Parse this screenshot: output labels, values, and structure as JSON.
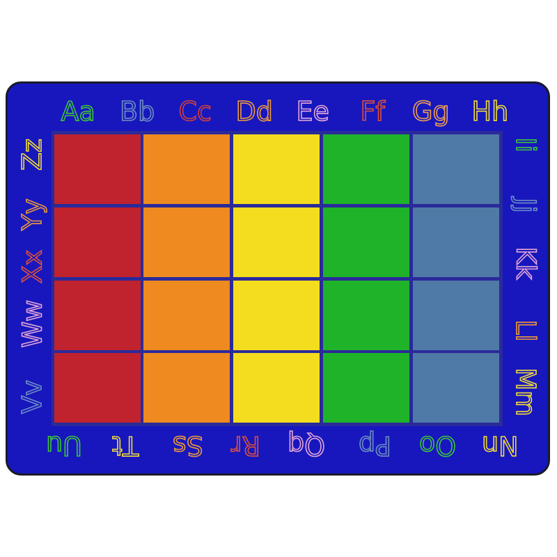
{
  "colors": {
    "rug_background": "#1717bd",
    "grid_lines": "#2a2a9a",
    "columns": [
      "#c0222e",
      "#ee8a1f",
      "#f3dd1e",
      "#1fb32a",
      "#4f79a6"
    ]
  },
  "grid": {
    "columns": 5,
    "rows": 4
  },
  "letters": {
    "top": [
      {
        "text": "Aa",
        "color": "#3ec43a"
      },
      {
        "text": "Bb",
        "color": "#6f8fc4"
      },
      {
        "text": "Cc",
        "color": "#d2403c"
      },
      {
        "text": "Dd",
        "color": "#f09a3a"
      },
      {
        "text": "Ee",
        "color": "#e6a6d8"
      },
      {
        "text": "Ff",
        "color": "#e0503a"
      },
      {
        "text": "Gg",
        "color": "#f3a050"
      },
      {
        "text": "Hh",
        "color": "#f2dc3a"
      }
    ],
    "right": [
      {
        "text": "Ii",
        "color": "#3ec43a"
      },
      {
        "text": "Jj",
        "color": "#6f8fc4"
      },
      {
        "text": "Kk",
        "color": "#e6a6d8"
      },
      {
        "text": "Ll",
        "color": "#f09a3a"
      },
      {
        "text": "Mm",
        "color": "#f2dc3a"
      }
    ],
    "bottom": [
      {
        "text": "Nn",
        "color": "#f2dc3a"
      },
      {
        "text": "Oo",
        "color": "#3ec43a"
      },
      {
        "text": "Pp",
        "color": "#6f8fc4"
      },
      {
        "text": "Qq",
        "color": "#e6a6d8"
      },
      {
        "text": "Rr",
        "color": "#e0503a"
      },
      {
        "text": "Ss",
        "color": "#f09a3a"
      },
      {
        "text": "Tt",
        "color": "#f2dc3a"
      },
      {
        "text": "Uu",
        "color": "#3ec43a"
      }
    ],
    "left": [
      {
        "text": "Vv",
        "color": "#6f8fc4"
      },
      {
        "text": "Ww",
        "color": "#e6a6d8"
      },
      {
        "text": "Xx",
        "color": "#e0503a"
      },
      {
        "text": "Yy",
        "color": "#f09a3a"
      },
      {
        "text": "Zz",
        "color": "#f2dc3a"
      }
    ]
  }
}
